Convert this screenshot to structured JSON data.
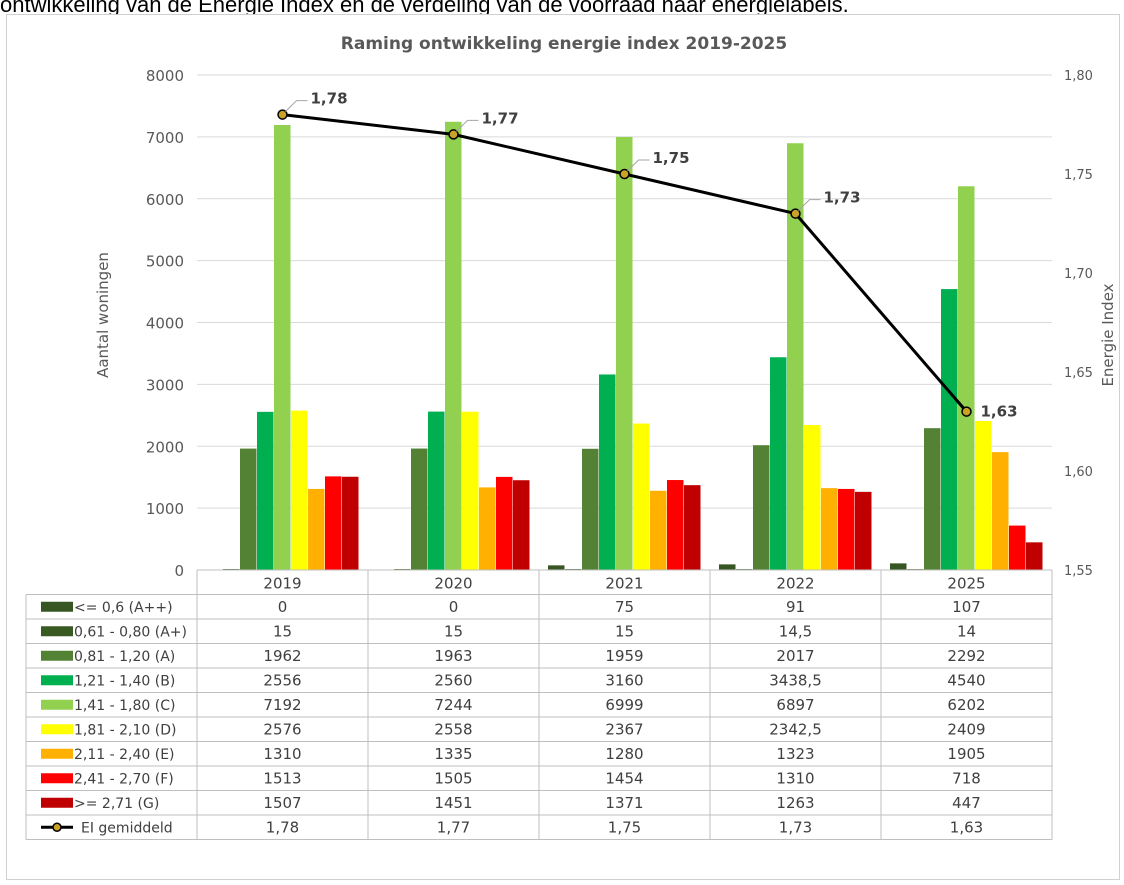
{
  "caption": "ontwikkeling van de Energie Index en de verdeling van de voorraad naar energielabels.",
  "chart_data": {
    "type": "bar",
    "title": "Raming ontwikkeling energie index 2019-2025",
    "categories": [
      "2019",
      "2020",
      "2021",
      "2022",
      "2025"
    ],
    "ylabel": "Aantal woningen",
    "ylim": [
      0,
      8000
    ],
    "y_ticks": [
      "0",
      "1000",
      "2000",
      "3000",
      "4000",
      "5000",
      "6000",
      "7000",
      "8000"
    ],
    "y2label": "Energie Index",
    "y2lim": [
      1.55,
      1.8
    ],
    "y2_ticks": [
      "1,55",
      "1,60",
      "1,65",
      "1,70",
      "1,75",
      "1,80"
    ],
    "grid": true,
    "legend": "data-table",
    "series": [
      {
        "name": "<= 0,6 (A++)",
        "color": "#375623",
        "values": [
          0,
          0,
          75,
          91,
          107
        ],
        "labels": [
          "0",
          "0",
          "75",
          "91",
          "107"
        ]
      },
      {
        "name": "0,61 - 0,80 (A+)",
        "color": "#3a5a24",
        "values": [
          15,
          15,
          15,
          14.5,
          14
        ],
        "labels": [
          "15",
          "15",
          "15",
          "14,5",
          "14"
        ]
      },
      {
        "name": "0,81 - 1,20 (A)",
        "color": "#548235",
        "values": [
          1962,
          1963,
          1959,
          2017,
          2292
        ],
        "labels": [
          "1962",
          "1963",
          "1959",
          "2017",
          "2292"
        ]
      },
      {
        "name": "1,21 - 1,40 (B)",
        "color": "#00b050",
        "values": [
          2556,
          2560,
          3160,
          3438.5,
          4540
        ],
        "labels": [
          "2556",
          "2560",
          "3160",
          "3438,5",
          "4540"
        ]
      },
      {
        "name": "1,41 - 1,80 (C)",
        "color": "#92d050",
        "values": [
          7192,
          7244,
          6999,
          6897,
          6202
        ],
        "labels": [
          "7192",
          "7244",
          "6999",
          "6897",
          "6202"
        ]
      },
      {
        "name": "1,81 - 2,10 (D)",
        "color": "#ffff00",
        "values": [
          2576,
          2558,
          2367,
          2342.5,
          2409
        ],
        "labels": [
          "2576",
          "2558",
          "2367",
          "2342,5",
          "2409"
        ]
      },
      {
        "name": "2,11 - 2,40 (E)",
        "color": "#ffb000",
        "values": [
          1310,
          1335,
          1280,
          1323,
          1905
        ],
        "labels": [
          "1310",
          "1335",
          "1280",
          "1323",
          "1905"
        ]
      },
      {
        "name": "2,41 - 2,70 (F)",
        "color": "#ff0000",
        "values": [
          1513,
          1505,
          1454,
          1310,
          718
        ],
        "labels": [
          "1513",
          "1505",
          "1454",
          "1310",
          "718"
        ]
      },
      {
        "name": ">= 2,71 (G)",
        "color": "#c00000",
        "values": [
          1507,
          1451,
          1371,
          1263,
          447
        ],
        "labels": [
          "1507",
          "1451",
          "1371",
          "1263",
          "447"
        ]
      }
    ],
    "line_series": {
      "name": "EI gemiddeld",
      "type": "line",
      "axis": "secondary",
      "color": "#000000",
      "marker_color": "#c9a227",
      "values": [
        1.78,
        1.77,
        1.75,
        1.73,
        1.63
      ],
      "labels": [
        "1,78",
        "1,77",
        "1,75",
        "1,73",
        "1,63"
      ]
    }
  }
}
